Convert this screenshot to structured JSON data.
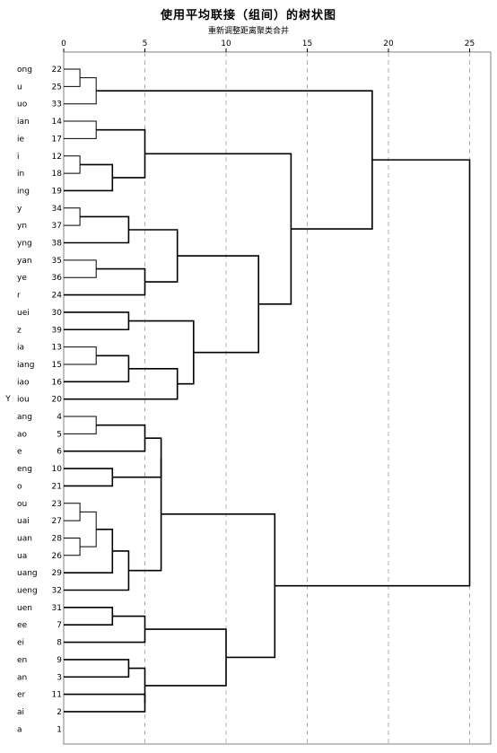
{
  "title": "使用平均联接（组间）的树状图",
  "subtitle": "重新调整距离聚类合并",
  "chart_data": {
    "type": "dendrogram",
    "ylabel": "Y",
    "x_ticks": [
      0,
      5,
      10,
      15,
      20,
      25
    ],
    "xlim": [
      0,
      25
    ],
    "grid": "vertical dashed",
    "leaves": [
      {
        "label": "ong",
        "id": "22"
      },
      {
        "label": "u",
        "id": "25"
      },
      {
        "label": "uo",
        "id": "33"
      },
      {
        "label": "ian",
        "id": "14"
      },
      {
        "label": "ie",
        "id": "17"
      },
      {
        "label": "i",
        "id": "12"
      },
      {
        "label": "in",
        "id": "18"
      },
      {
        "label": "ing",
        "id": "19"
      },
      {
        "label": "y",
        "id": "34"
      },
      {
        "label": "yn",
        "id": "37"
      },
      {
        "label": "yng",
        "id": "38"
      },
      {
        "label": "yan",
        "id": "35"
      },
      {
        "label": "ye",
        "id": "36"
      },
      {
        "label": "r",
        "id": "24"
      },
      {
        "label": "uei",
        "id": "30"
      },
      {
        "label": "z",
        "id": "39"
      },
      {
        "label": "ia",
        "id": "13"
      },
      {
        "label": "iang",
        "id": "15"
      },
      {
        "label": "iao",
        "id": "16"
      },
      {
        "label": "iou",
        "id": "20"
      },
      {
        "label": "ang",
        "id": "4"
      },
      {
        "label": "ao",
        "id": "5"
      },
      {
        "label": "e",
        "id": "6"
      },
      {
        "label": "eng",
        "id": "10"
      },
      {
        "label": "o",
        "id": "21"
      },
      {
        "label": "ou",
        "id": "23"
      },
      {
        "label": "uai",
        "id": "27"
      },
      {
        "label": "uan",
        "id": "28"
      },
      {
        "label": "ua",
        "id": "26"
      },
      {
        "label": "uang",
        "id": "29"
      },
      {
        "label": "ueng",
        "id": "32"
      },
      {
        "label": "uen",
        "id": "31"
      },
      {
        "label": "ee",
        "id": "7"
      },
      {
        "label": "ei",
        "id": "8"
      },
      {
        "label": "en",
        "id": "9"
      },
      {
        "label": "an",
        "id": "3"
      },
      {
        "label": "er",
        "id": "11"
      },
      {
        "label": "ai",
        "id": "2"
      },
      {
        "label": "a",
        "id": "1"
      }
    ],
    "merges": [
      {
        "id": "n1",
        "a": 0,
        "b": 1,
        "h": 1.0
      },
      {
        "id": "n2",
        "a": "n1",
        "b": 2,
        "h": 2.0
      },
      {
        "id": "n3",
        "a": 3,
        "b": 4,
        "h": 2.0
      },
      {
        "id": "n4",
        "a": 5,
        "b": 6,
        "h": 1.0
      },
      {
        "id": "n5",
        "a": "n4",
        "b": 7,
        "h": 3.0
      },
      {
        "id": "n6",
        "a": "n3",
        "b": "n5",
        "h": 5.0
      },
      {
        "id": "n7",
        "a": 8,
        "b": 9,
        "h": 1.0
      },
      {
        "id": "n8",
        "a": "n7",
        "b": 10,
        "h": 4.0
      },
      {
        "id": "n9",
        "a": 11,
        "b": 12,
        "h": 2.0
      },
      {
        "id": "n10",
        "a": "n9",
        "b": 13,
        "h": 5.0
      },
      {
        "id": "n11",
        "a": "n8",
        "b": "n10",
        "h": 7.0
      },
      {
        "id": "n12",
        "a": 14,
        "b": 15,
        "h": 4.0
      },
      {
        "id": "n13",
        "a": 16,
        "b": 17,
        "h": 2.0
      },
      {
        "id": "n14",
        "a": "n13",
        "b": 18,
        "h": 4.0
      },
      {
        "id": "n15",
        "a": "n14",
        "b": 19,
        "h": 7.0
      },
      {
        "id": "n16",
        "a": "n12",
        "b": "n15",
        "h": 8.0
      },
      {
        "id": "n17",
        "a": "n11",
        "b": "n16",
        "h": 12.0
      },
      {
        "id": "n18",
        "a": "n6",
        "b": "n17",
        "h": 14.0
      },
      {
        "id": "n19",
        "a": "n2",
        "b": "n18",
        "h": 19.0
      },
      {
        "id": "n20",
        "a": 20,
        "b": 21,
        "h": 2.0
      },
      {
        "id": "n21",
        "a": "n20",
        "b": 22,
        "h": 5.0
      },
      {
        "id": "n22",
        "a": 23,
        "b": 24,
        "h": 3.0
      },
      {
        "id": "n23",
        "a": "n21",
        "b": "n22",
        "h": 6.0
      },
      {
        "id": "n24",
        "a": 25,
        "b": 26,
        "h": 1.0
      },
      {
        "id": "n25",
        "a": 27,
        "b": 28,
        "h": 1.0
      },
      {
        "id": "n26",
        "a": "n24",
        "b": "n25",
        "h": 2.0
      },
      {
        "id": "n27",
        "a": "n26",
        "b": 29,
        "h": 3.0
      },
      {
        "id": "n28",
        "a": "n27",
        "b": 30,
        "h": 4.0
      },
      {
        "id": "n29",
        "a": "n23",
        "b": "n28",
        "h": 6.0
      },
      {
        "id": "n30",
        "a": 31,
        "b": 32,
        "h": 3.0
      },
      {
        "id": "n31",
        "a": "n30",
        "b": 33,
        "h": 5.0
      },
      {
        "id": "n32",
        "a": 34,
        "b": 35,
        "h": 4.0
      },
      {
        "id": "n33",
        "a": 36,
        "b": 37,
        "h": 5.0
      },
      {
        "id": "n34",
        "a": "n32",
        "b": "n33",
        "h": 5.0
      },
      {
        "id": "n35",
        "a": "n31",
        "b": "n34",
        "h": 10.0
      },
      {
        "id": "n36",
        "a": "n29",
        "b": "n35",
        "h": 13.0
      },
      {
        "id": "n37",
        "a": "n19",
        "b": "n36",
        "h": 25.0
      }
    ]
  }
}
